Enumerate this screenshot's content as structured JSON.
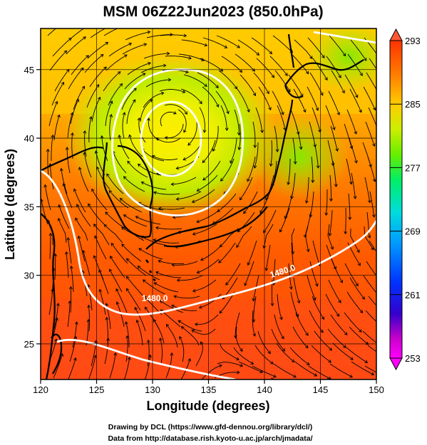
{
  "title": "MSM 06Z22Jun2023 (850.0hPa)",
  "map": {
    "lon_range": [
      120,
      150
    ],
    "lat_range": [
      22.4,
      48.0
    ],
    "xlabel": "Longitude (degrees)",
    "ylabel": "Latitude  (degrees)",
    "x_ticks": [
      "120",
      "125",
      "130",
      "135",
      "140",
      "145",
      "150"
    ],
    "x_tick_values": [
      120,
      125,
      130,
      135,
      140,
      145,
      150
    ],
    "y_ticks": [
      "25",
      "30",
      "35",
      "40",
      "45"
    ],
    "y_tick_values": [
      25,
      30,
      35,
      40,
      45
    ],
    "gridlines": true,
    "field": "temperature (K) shaded",
    "overlays": [
      "streamlines",
      "white geopotential height contours",
      "coastlines"
    ],
    "low_center": {
      "lon": 131.5,
      "lat": 41.2
    },
    "contour_label": {
      "text": "1480.0",
      "lon": 130.2,
      "lat": 28.1
    },
    "contour_label_2": {
      "text": "1480.0",
      "lon": 141.7,
      "lat": 30.1
    }
  },
  "colorbar": {
    "min": 253,
    "max": 293,
    "tick_labels": [
      "293",
      "285",
      "277",
      "269",
      "261",
      "253"
    ],
    "tick_values": [
      293,
      285,
      277,
      269,
      261,
      253
    ],
    "colors": [
      "#ff00ff",
      "#0000cc",
      "#0066ff",
      "#00ccff",
      "#00ff88",
      "#66ff00",
      "#ccff00",
      "#ffdd00",
      "#ff9900",
      "#ff4400",
      "#ff3300"
    ]
  },
  "credits": {
    "line1": "Drawing by DCL (https://www.gfd-dennou.org/library/dcl/)",
    "line2": "Data from http://database.rish.kyoto-u.ac.jp/arch/jmadata/"
  }
}
